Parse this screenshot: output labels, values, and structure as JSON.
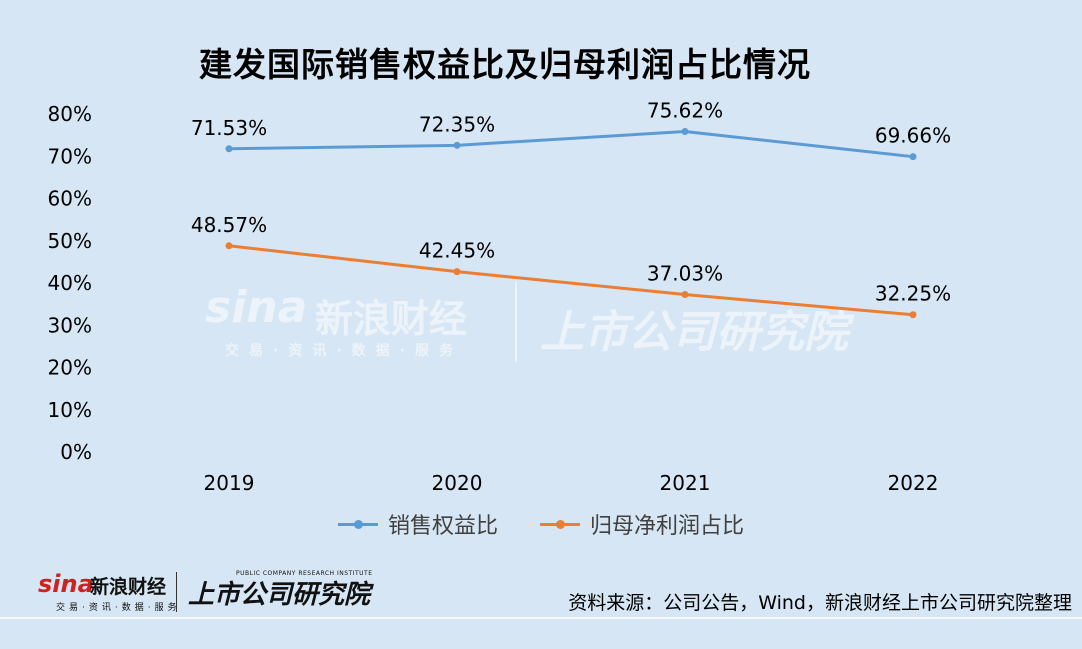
{
  "title": "建发国际销售权益比及归母利润占比情况",
  "source": "资料来源：公司公告，Wind，新浪财经上市公司研究院整理",
  "watermark": {
    "sina": "sina",
    "name": "新浪财经",
    "sub": "交易·资讯·数据·服务",
    "institute": "上市公司研究院"
  },
  "logo": {
    "sina": "sina",
    "name": "新浪财经",
    "sub": "交易·资讯·数据·服务",
    "institute": "上市公司研究院",
    "institute_en": "PUBLIC COMPANY RESEARCH INSTITUTE"
  },
  "chart_data": {
    "type": "line",
    "title": "建发国际销售权益比及归母利润占比情况",
    "categories": [
      "2019",
      "2020",
      "2021",
      "2022"
    ],
    "y_ticks": [
      "0%",
      "10%",
      "20%",
      "30%",
      "40%",
      "50%",
      "60%",
      "70%",
      "80%"
    ],
    "ylim": [
      0,
      80
    ],
    "grid": false,
    "legend_position": "bottom",
    "series": [
      {
        "name": "销售权益比",
        "color": "#5b9bd5",
        "values": [
          71.53,
          72.35,
          75.62,
          69.66
        ],
        "labels": [
          "71.53%",
          "72.35%",
          "75.62%",
          "69.66%"
        ]
      },
      {
        "name": "归母净利润占比",
        "color": "#ed7d31",
        "values": [
          48.57,
          42.45,
          37.03,
          32.25
        ],
        "labels": [
          "48.57%",
          "42.45%",
          "37.03%",
          "32.25%"
        ]
      }
    ]
  }
}
